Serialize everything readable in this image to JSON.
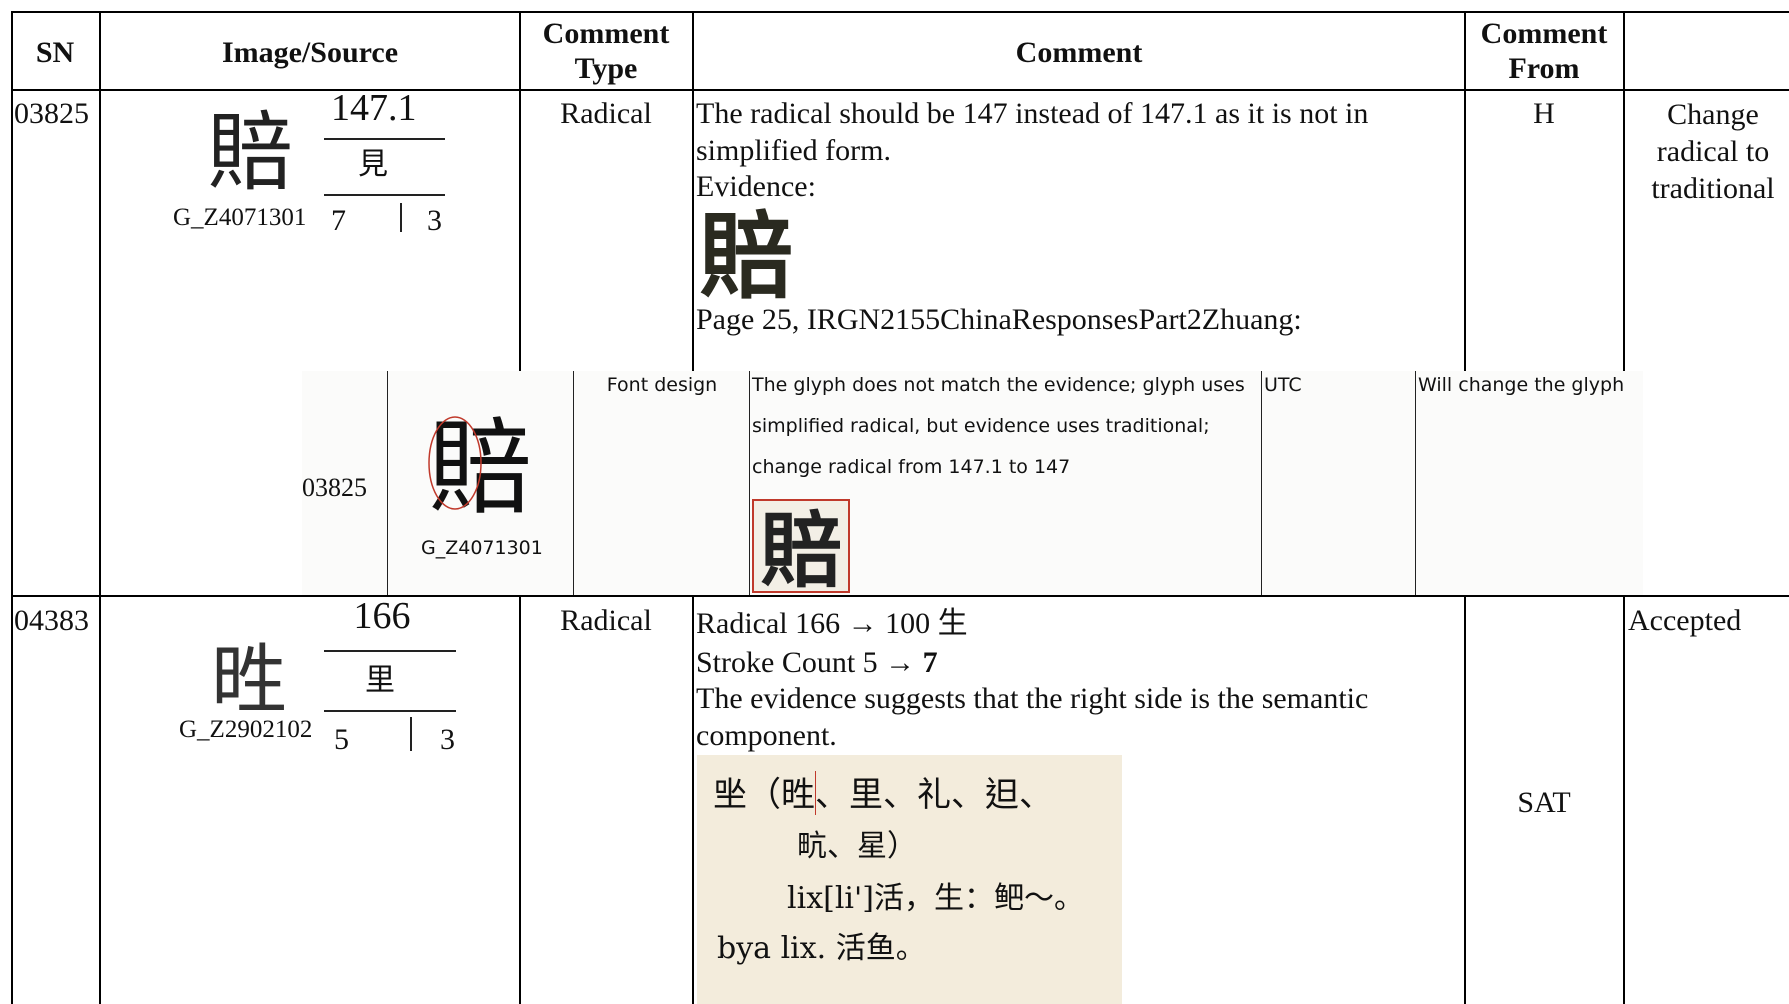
{
  "header": [
    "SN",
    "Image/Source",
    "Comment Type",
    "Comment",
    "Comment From"
  ],
  "rows": [
    {
      "sn": "03825",
      "source": {
        "radical": "147.1",
        "radical_char": "見",
        "id": "G_Z4071301",
        "strokes_left": "7",
        "strokes_right": "3"
      },
      "comment_type": "Radical",
      "comment": [
        "The radical should be 147 instead of 147.1 as it is not in",
        "simplified form.",
        "Evidence:",
        "Page 25, IRGN2155ChinaResponsesPart2Zhuang:"
      ],
      "response": {
        "sn": "03825",
        "source": "G_Z4071301",
        "type": "Font design",
        "comment": [
          "The glyph does not match the evidence; glyph uses",
          "simplified radical, but evidence uses traditional;",
          "change radical from 147.1 to 147"
        ],
        "from": "UTC",
        "disposition": "Will change the glyph"
      },
      "from": "H",
      "disposition": "Change radical to traditional"
    },
    {
      "sn": "04383",
      "source": {
        "radical": "166",
        "radical_char": "里",
        "id": "G_Z2902102",
        "strokes_left": "5",
        "strokes_right": "3"
      },
      "comment_type": "Radical",
      "comment": [
        "Radical 166 → 100 生",
        {
          "text": "Stroke Count 5 →",
          "bold": "7"
        },
        "The evidence suggests that the right side is the semantic",
        "component."
      ],
      "evidence": [
        "㘴（甠、里、礼、𨑨、",
        "㽘、星）",
        "lix[li']活，生：鲃～。",
        "bya lix. 活鱼。"
      ],
      "from": "SAT",
      "disposition": "Accepted"
    }
  ]
}
